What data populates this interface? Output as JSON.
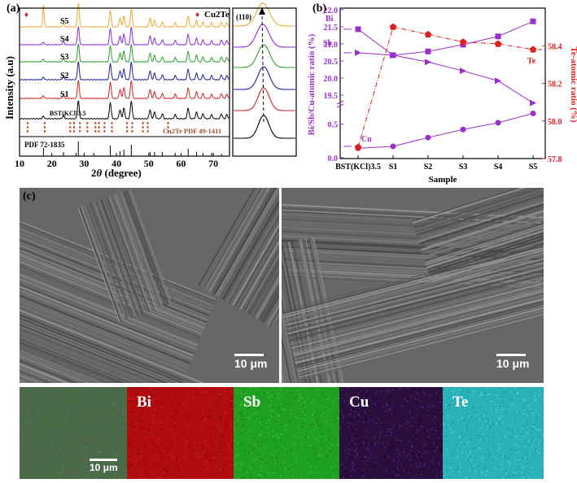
{
  "panel_labels": {
    "a": "(a)",
    "b": "(b)",
    "c": "(c)"
  },
  "xrd": {
    "ylabel": "Intensity (a.u)",
    "xlabel_pre": "2",
    "xlabel_theta": "θ",
    "xlabel_post": " (degree)",
    "xticks": [
      "10",
      "20",
      "30",
      "40",
      "50",
      "60",
      "70"
    ],
    "sample_labels": [
      "S5",
      "S4",
      "S3",
      "S2",
      "S1",
      "BST(KCl)3.5"
    ],
    "legend_marker": "♦",
    "legend_text": "Cu2Te",
    "pdf_cu2te": "Cu2Te PDF 49-1411",
    "pdf_bst": "PDF 72-1835",
    "inset_label": "(110)",
    "colors": [
      "#f0a830",
      "#8a2be2",
      "#2e9e2e",
      "#1f1f9c",
      "#d42020",
      "#000000"
    ]
  },
  "chart_data": [
    {
      "type": "line",
      "title": "",
      "xlabel": "2θ (degree)",
      "ylabel": "Intensity (a.u)",
      "xlim": [
        10,
        75
      ],
      "ticks_x": [
        10,
        20,
        30,
        40,
        50,
        60,
        70
      ],
      "grid": false,
      "series": [
        {
          "name": "S5"
        },
        {
          "name": "S4"
        },
        {
          "name": "S3"
        },
        {
          "name": "S2"
        },
        {
          "name": "S1"
        },
        {
          "name": "BST(KCl)3.5"
        }
      ],
      "peaks_2theta": [
        17.4,
        23.6,
        28.2,
        38.1,
        41.1,
        42.3,
        44.6,
        50.4,
        51.8,
        54.2,
        58.2,
        62.2,
        64.8,
        66.8,
        69.5,
        72.5,
        74.2
      ],
      "cu2te_marker_2theta": 12.5,
      "cu2te_pdf_ticks_2theta": [
        12.5,
        17.8,
        25.7,
        26.9,
        28.7,
        31.0,
        33.5,
        34.6,
        36.3,
        38.6,
        43.3,
        44.9,
        48.2,
        49.7,
        56.0
      ],
      "bst_pdf_ticks_2theta": [
        17.4,
        23.6,
        27.5,
        28.2,
        33.0,
        38.1,
        41.1,
        42.3,
        44.6,
        50.4,
        51.8,
        54.2,
        58.2,
        62.2,
        64.8,
        66.8,
        69.5,
        72.5
      ]
    },
    {
      "type": "line",
      "title": "",
      "xlabel": "Sample",
      "ylabel": "Bi/Sb/Cu-atomic ratio (%)",
      "y2label": "Te-atomic ratio (%)",
      "categories": [
        "BST(KCl)3.5",
        "S1",
        "S2",
        "S3",
        "S4",
        "S5"
      ],
      "ylim_upper": [
        19.0,
        22.0
      ],
      "ylim_lower": [
        0.0,
        0.75
      ],
      "y_ticks": [
        "0.0",
        "0.5",
        "19.5",
        "20.0",
        "20.5",
        "21.0",
        "21.5",
        "22.0"
      ],
      "y2lim": [
        57.8,
        58.6
      ],
      "y2_ticks": [
        "57.8",
        "58.0",
        "58.2",
        "58.4"
      ],
      "series": [
        {
          "name": "Bi",
          "axis": "left",
          "values": [
            21.43,
            20.67,
            20.78,
            20.98,
            21.22,
            21.66
          ]
        },
        {
          "name": "Sb",
          "axis": "left",
          "values": [
            20.74,
            20.67,
            20.47,
            20.21,
            19.92,
            19.27
          ]
        },
        {
          "name": "Cu",
          "axis": "left",
          "values": [
            0.14,
            0.17,
            0.3,
            0.42,
            0.52,
            0.66
          ]
        },
        {
          "name": "Te",
          "axis": "right",
          "values": [
            57.86,
            58.5,
            58.46,
            58.42,
            58.41,
            58.38
          ]
        }
      ],
      "colors": {
        "left": "#9a30cc",
        "right": "#e02020"
      }
    }
  ],
  "sem": {
    "scale_left": "10 μm",
    "scale_right": "10 μm"
  },
  "maps": {
    "scale": "10 μm",
    "labels": [
      "Bi",
      "Sb",
      "Cu",
      "Te"
    ],
    "colors": [
      "#b00c10",
      "#20a020",
      "#2a0f3e",
      "#2ab0b8"
    ]
  }
}
